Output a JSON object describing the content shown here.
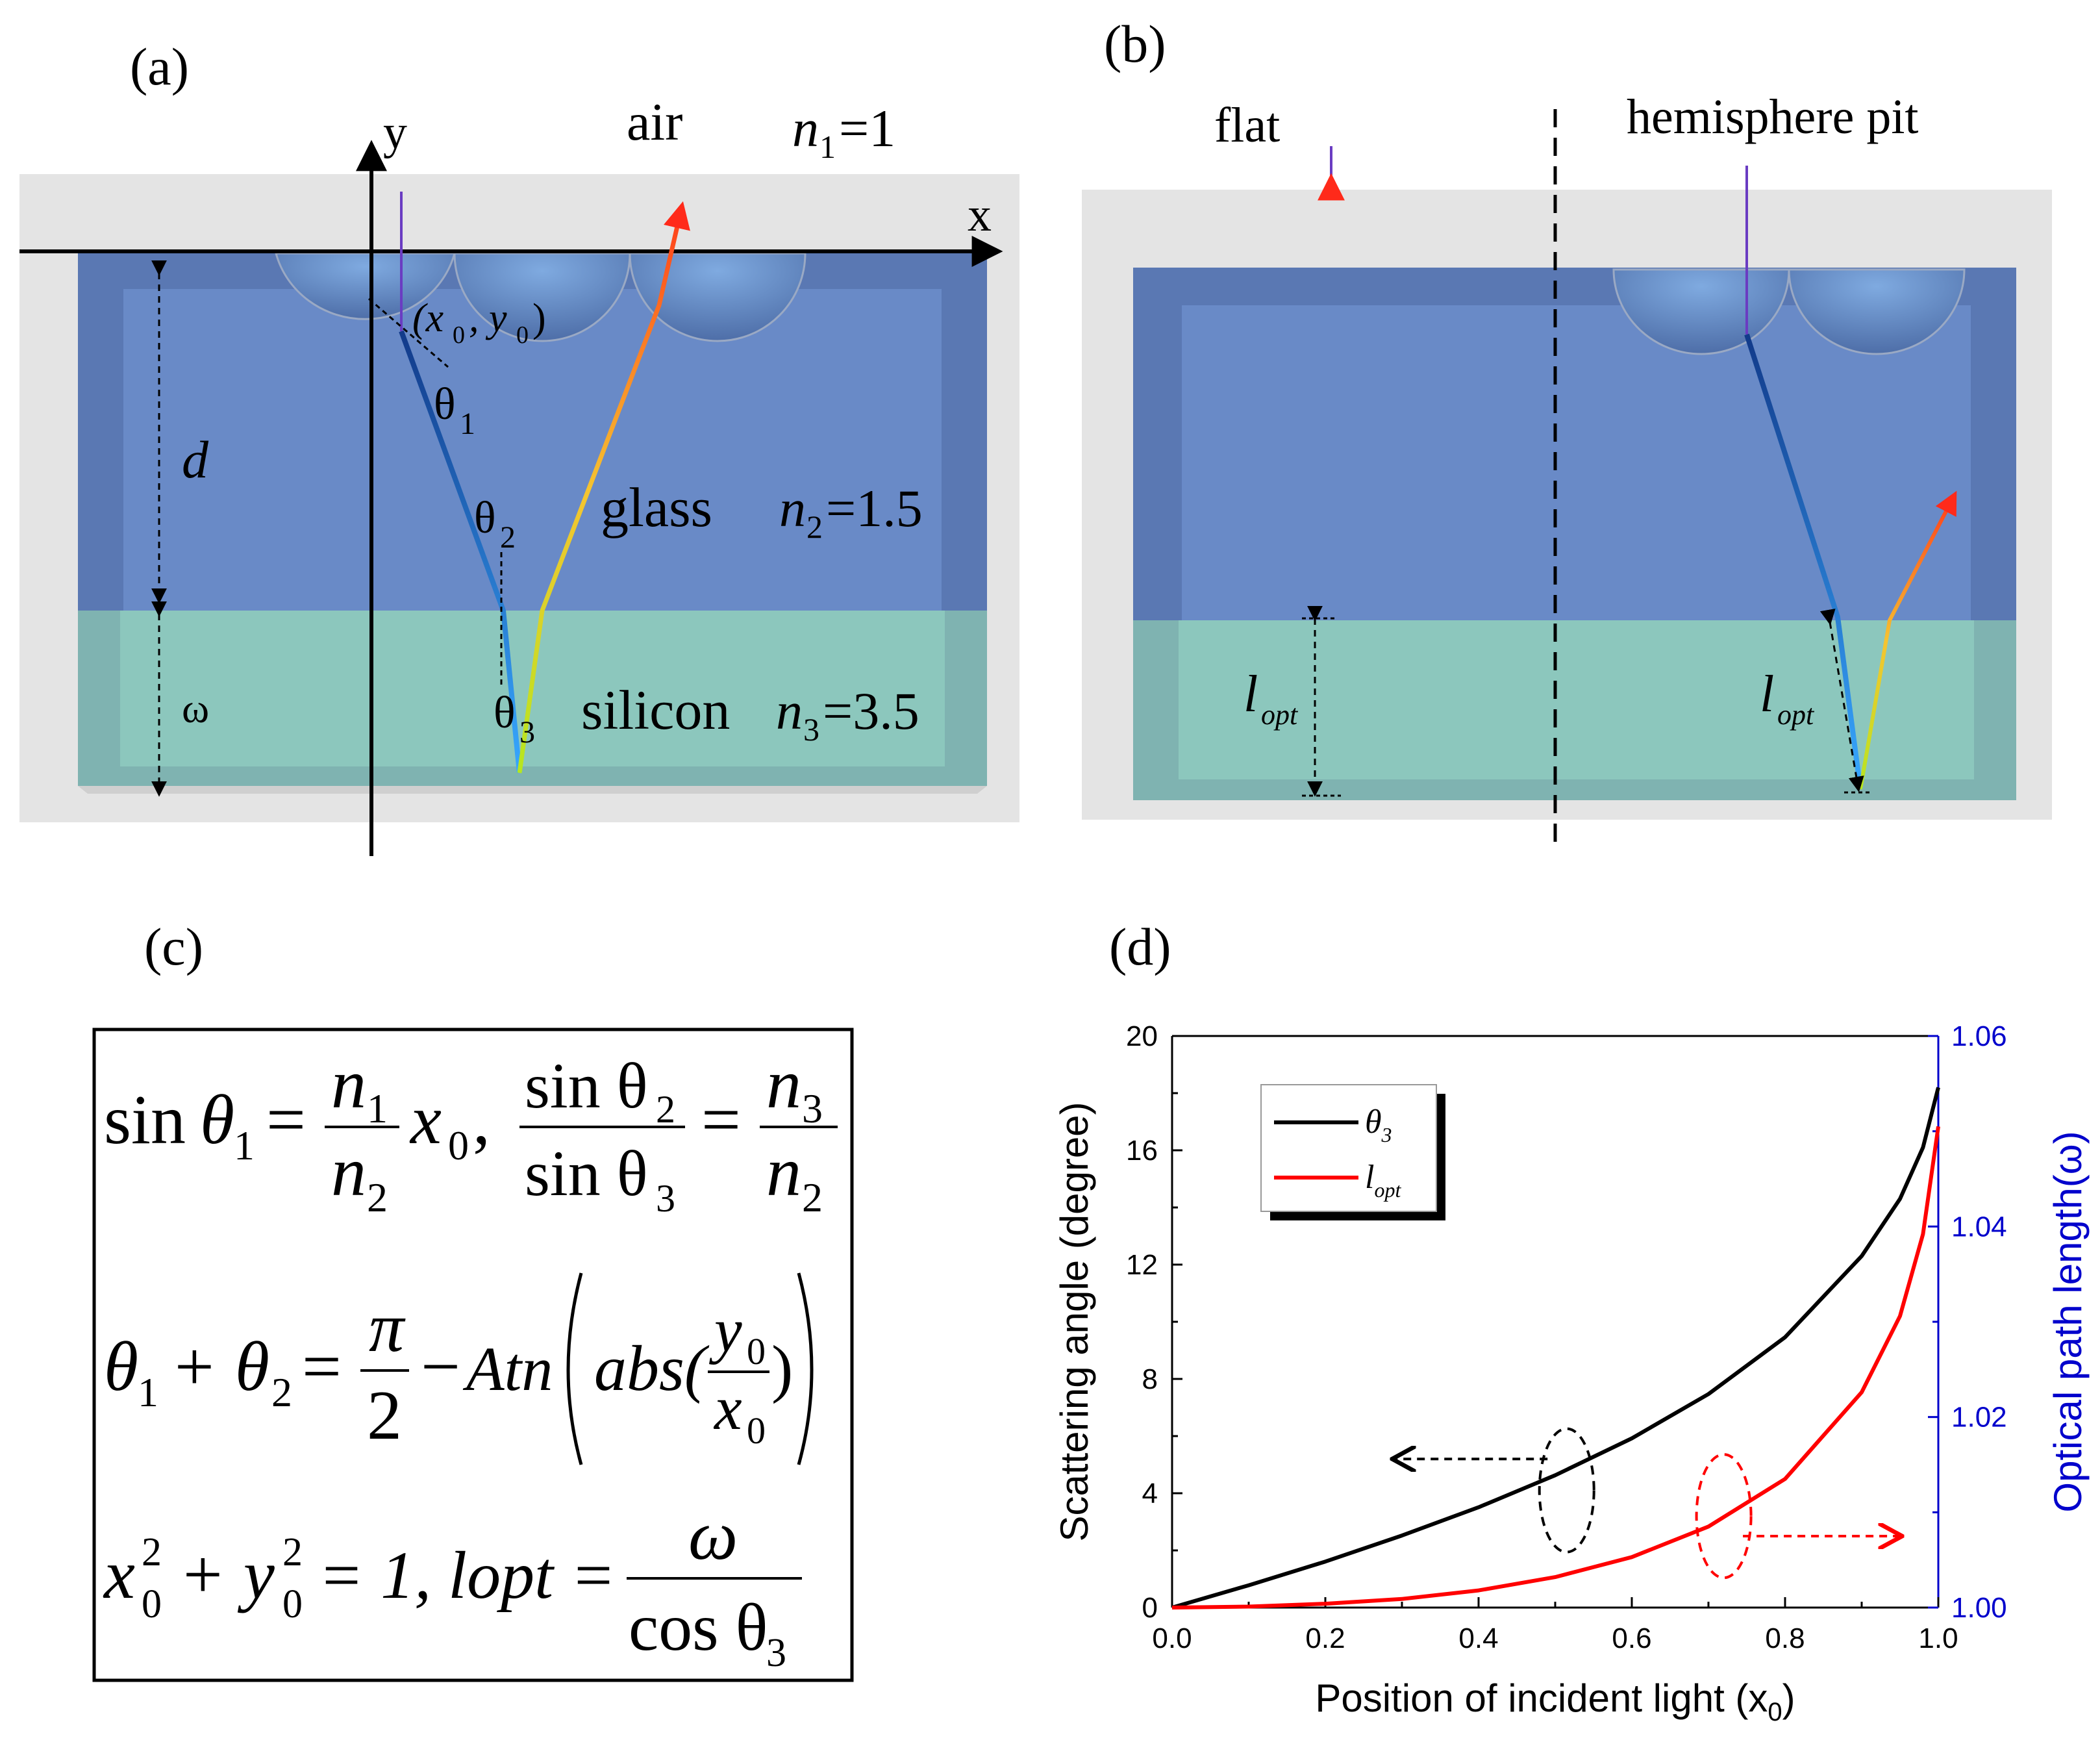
{
  "panels": {
    "a": {
      "label": "(a)",
      "axis_y": "y",
      "axis_x": "x",
      "air": "air",
      "n1_sym": "n",
      "n1_sub": "1",
      "n1_val": "=1",
      "point_text": "(x",
      "point_sub0": "0",
      "point_mid": ", y",
      "point_sub1": "0",
      "point_end": ")",
      "theta1": "θ",
      "theta1_sub": "1",
      "theta2": "θ",
      "theta2_sub": "2",
      "theta3": "θ",
      "theta3_sub": "3",
      "d_label": "d",
      "omega_label": "ω",
      "glass": "glass",
      "n2_sym": "n",
      "n2_sub": "2",
      "n2_val": "=1.5",
      "silicon": "silicon",
      "n3_sym": "n",
      "n3_sub": "3",
      "n3_val": "=3.5"
    },
    "b": {
      "label": "(b)",
      "flat": "flat",
      "hemisphere": "hemisphere pit",
      "lopt_l": "l",
      "lopt_sub": "opt"
    },
    "c": {
      "label": "(c)",
      "eq1_sin": "sin",
      "eq1_theta": "θ",
      "eq1_sub": "1",
      "eq1_eq": "=",
      "eq1_num": "n",
      "eq1_num_sub": "1",
      "eq1_den": "n",
      "eq1_den_sub": "2",
      "eq1_x": "x",
      "eq1_x_sub": "0",
      "eq1_comma": ",",
      "eq2_num": "sin θ",
      "eq2_num_sub": "2",
      "eq2_den": "sin θ",
      "eq2_den_sub": "3",
      "eq2_eq": "=",
      "eq2_rnum": "n",
      "eq2_rnum_sub": "3",
      "eq2_rden": "n",
      "eq2_rden_sub": "2",
      "eq3_left": "θ",
      "eq3_s1": "1",
      "eq3_plus": "+ θ",
      "eq3_s2": "2",
      "eq3_eq": "=",
      "eq3_pi": "π",
      "eq3_two": "2",
      "eq3_minus": "−",
      "eq3_atn": "Atn",
      "eq3_abs": "abs(",
      "eq3_y": "y",
      "eq3_y_sub": "0",
      "eq3_x": "x",
      "eq3_x_sub": "0",
      "eq3_close": ")",
      "eq4_x": "x",
      "eq4_x_sub": "0",
      "eq4_x_sup": "2",
      "eq4_plus": "+ y",
      "eq4_y_sub": "0",
      "eq4_y_sup": "2",
      "eq4_rest": "= 1, lopt =",
      "eq4_num": "ω",
      "eq4_den": "cos θ",
      "eq4_den_sub": "3"
    },
    "d": {
      "label": "(d)"
    }
  },
  "chart_data": {
    "type": "line",
    "title": "",
    "xlabel": "Position of incident light (x",
    "xlabel_sub": "0",
    "xlabel_end": ")",
    "ylabel": "Scattering angle (degree)",
    "ylabel_right": "Optical path length(ω)",
    "xlim": [
      0,
      1
    ],
    "ylim": [
      0,
      20
    ],
    "ylim_right": [
      1.0,
      1.06
    ],
    "x_ticks": [
      "0.0",
      "0.2",
      "0.4",
      "0.6",
      "0.8",
      "1.0"
    ],
    "y_ticks": [
      "0",
      "4",
      "8",
      "12",
      "16",
      "20"
    ],
    "y_ticks_right": [
      "1.00",
      "1.02",
      "1.04",
      "1.06"
    ],
    "legend": [
      {
        "name": "θ",
        "sub": "3",
        "color": "#000000"
      },
      {
        "name": "l",
        "sub": "opt",
        "color": "#ff0000"
      }
    ],
    "right_axis_color": "#0000cc",
    "series": [
      {
        "name": "θ3",
        "axis": "left",
        "color": "#000000",
        "x": [
          0,
          0.1,
          0.2,
          0.3,
          0.4,
          0.5,
          0.6,
          0.7,
          0.8,
          0.9,
          0.95,
          0.98,
          1.0
        ],
        "y": [
          0,
          0.78,
          1.61,
          2.52,
          3.51,
          4.63,
          5.92,
          7.47,
          9.46,
          12.3,
          14.3,
          16.1,
          18.2
        ]
      },
      {
        "name": "lopt",
        "axis": "right",
        "color": "#ff0000",
        "x": [
          0,
          0.1,
          0.2,
          0.3,
          0.4,
          0.5,
          0.6,
          0.7,
          0.8,
          0.9,
          0.95,
          0.98,
          1.0
        ],
        "y": [
          1.0,
          1.0001,
          1.0004,
          1.0009,
          1.0018,
          1.0032,
          1.0053,
          1.0085,
          1.0135,
          1.0226,
          1.0306,
          1.0392,
          1.0505
        ]
      }
    ]
  }
}
